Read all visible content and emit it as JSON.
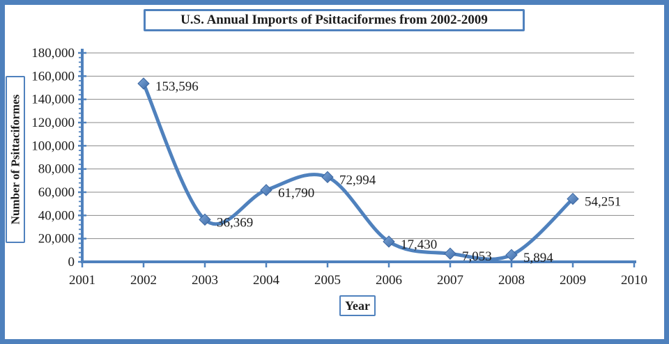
{
  "chart_data": {
    "type": "line",
    "title": "U.S. Annual Imports of Psittaciformes from 2002-2009",
    "xlabel": "Year",
    "ylabel": "Number of Psittaciformes",
    "x": [
      2002,
      2003,
      2004,
      2005,
      2006,
      2007,
      2008,
      2009
    ],
    "values": [
      153596,
      36369,
      61790,
      72994,
      17430,
      7053,
      5894,
      54251
    ],
    "data_labels": [
      "153,596",
      "36,369",
      "61,790",
      "72,994",
      "17,430",
      "7,053",
      "5,894",
      "54,251"
    ],
    "x_axis_ticks": [
      "2001",
      "2002",
      "2003",
      "2004",
      "2005",
      "2006",
      "2007",
      "2008",
      "2009",
      "2010"
    ],
    "x_axis_tick_values": [
      2001,
      2002,
      2003,
      2004,
      2005,
      2006,
      2007,
      2008,
      2009,
      2010
    ],
    "y_axis_ticks": [
      "0",
      "20,000",
      "40,000",
      "60,000",
      "80,000",
      "100,000",
      "120,000",
      "140,000",
      "160,000",
      "180,000"
    ],
    "xlim": [
      2001,
      2010
    ],
    "ylim": [
      0,
      180000
    ],
    "y_major_unit": 20000,
    "y_minor_unit": 4000,
    "grid": "horizontal-major",
    "legend": "none",
    "line_smoothed": true,
    "marker": "diamond",
    "colors": {
      "line": "#4f81bd",
      "marker_light": "#7fa7d8",
      "marker_dark": "#3e6ca9",
      "marker_stroke": "#3b66a0",
      "axis": "#4f81bd",
      "gridline": "#898989",
      "frame": "#4e80bc",
      "text": "#1c1c1c",
      "background": "#ffffff"
    }
  }
}
